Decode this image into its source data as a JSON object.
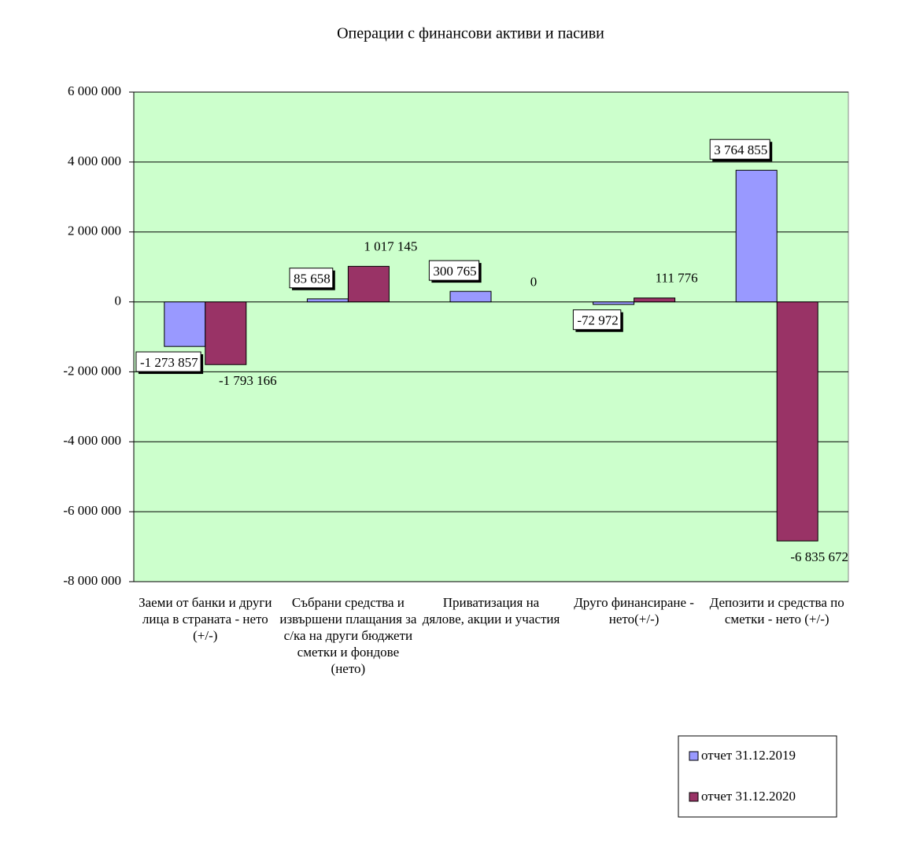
{
  "chart_data": {
    "type": "bar",
    "title": "Операции с финансови активи и пасиви",
    "categories": [
      "Заеми от банки и други лица в страната - нето (+/-)",
      "Събрани средства и извършени плащания за с/ка на други бюджети сметки и фондове (нето)",
      "Приватизация на дялове, акции и участия",
      "Друго финансиране - нето(+/-)",
      "Депозити и средства по сметки - нето (+/-)"
    ],
    "series": [
      {
        "name": "отчет 31.12.2019",
        "color": "#9999ff",
        "values": [
          -1273857,
          85658,
          300765,
          -72972,
          3764855
        ],
        "value_labels": [
          "-1 273 857",
          "85 658",
          "300 765",
          "-72 972",
          "3 764 855"
        ]
      },
      {
        "name": "отчет 31.12.2020",
        "color": "#993366",
        "values": [
          -1793166,
          1017145,
          0,
          111776,
          -6835672
        ],
        "value_labels": [
          "-1 793 166",
          "1 017 145",
          "0",
          "111 776",
          "-6 835 672"
        ]
      }
    ],
    "ylim": [
      -8000000,
      6000000
    ],
    "yticks": [
      {
        "value": -8000000,
        "label": "-8 000 000"
      },
      {
        "value": -6000000,
        "label": "-6 000 000"
      },
      {
        "value": -4000000,
        "label": "-4 000 000"
      },
      {
        "value": -2000000,
        "label": "-2 000 000"
      },
      0,
      {
        "value": 2000000,
        "label": "2 000 000"
      },
      {
        "value": 4000000,
        "label": "4 000 000"
      },
      {
        "value": 6000000,
        "label": "6 000 000"
      }
    ],
    "grid": true,
    "plot_background": "#ccffcc",
    "legend": "bottom-right"
  }
}
